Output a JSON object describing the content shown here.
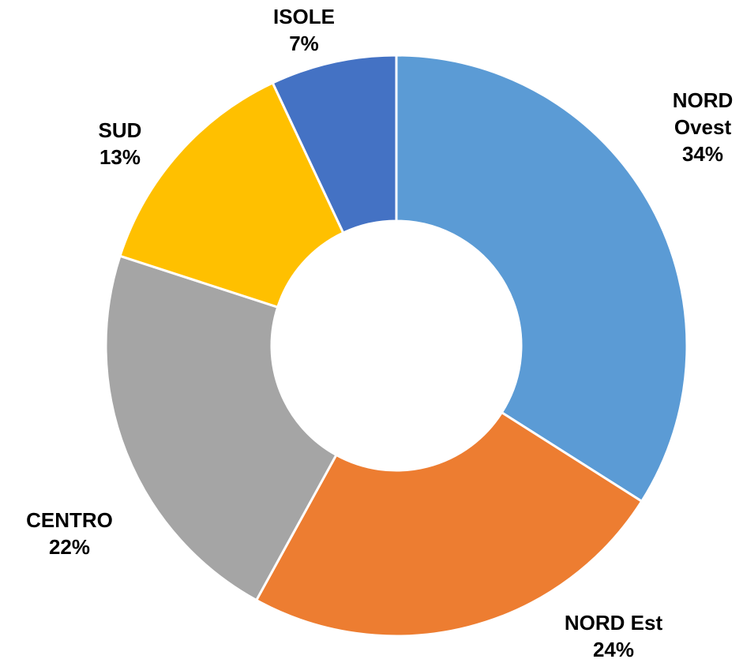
{
  "chart_data": {
    "type": "donut",
    "categories": [
      "NORD Ovest",
      "NORD Est",
      "CENTRO",
      "SUD",
      "ISOLE"
    ],
    "values": [
      34,
      24,
      22,
      13,
      7
    ],
    "value_labels": [
      "34%",
      "24%",
      "22%",
      "13%",
      "7%"
    ],
    "colors": [
      "#5b9bd5",
      "#ed7d31",
      "#a5a5a5",
      "#ffc000",
      "#4472c4"
    ]
  }
}
